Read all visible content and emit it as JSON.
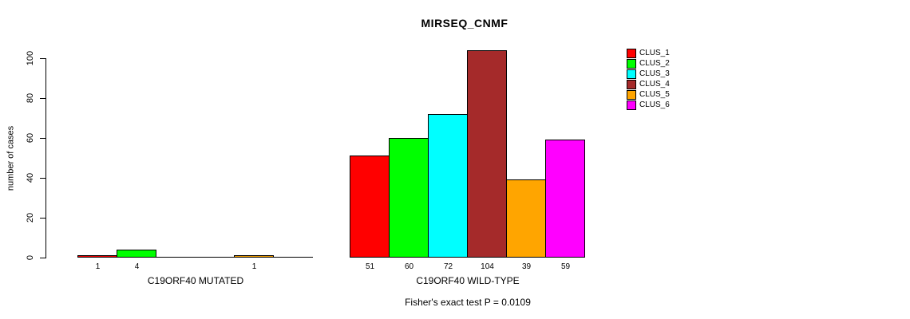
{
  "chart_data": {
    "type": "bar",
    "title": "MIRSEQ_CNMF",
    "ylabel": "number of cases",
    "ylim": [
      0,
      100
    ],
    "yticks": [
      0,
      20,
      40,
      60,
      80,
      100
    ],
    "grid": false,
    "clusters": [
      "CLUS_1",
      "CLUS_2",
      "CLUS_3",
      "CLUS_4",
      "CLUS_5",
      "CLUS_6"
    ],
    "colors": [
      "#ff0000",
      "#00ff00",
      "#00ffff",
      "#a52a2a",
      "#ffa500",
      "#ff00ff"
    ],
    "groups": [
      {
        "label": "C19ORF40 MUTATED",
        "values": [
          1,
          4,
          0,
          0,
          1,
          0
        ]
      },
      {
        "label": "C19ORF40 WILD-TYPE",
        "values": [
          51,
          60,
          72,
          104,
          39,
          59
        ]
      }
    ],
    "legend": {
      "position": "right",
      "entries": [
        {
          "label": "CLUS_1",
          "color": "#ff0000"
        },
        {
          "label": "CLUS_2",
          "color": "#00ff00"
        },
        {
          "label": "CLUS_3",
          "color": "#00ffff"
        },
        {
          "label": "CLUS_4",
          "color": "#a52a2a"
        },
        {
          "label": "CLUS_5",
          "color": "#ffa500"
        },
        {
          "label": "CLUS_6",
          "color": "#ff00ff"
        }
      ]
    },
    "annotation": "Fisher's exact test P = 0.0109"
  }
}
